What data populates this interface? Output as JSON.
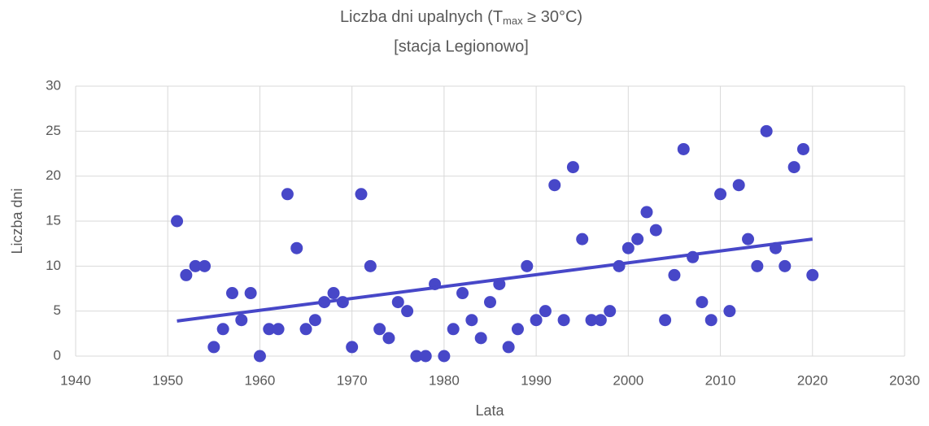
{
  "chart_data": {
    "type": "scatter",
    "title": "Liczba dni upalnych (T",
    "title_subscript": "max",
    "title_rest": " ≥ 30°C)",
    "subtitle": "[stacja Legionowo]",
    "x_label": "Lata",
    "y_label": "Liczba dni",
    "x": [
      1951,
      1952,
      1953,
      1954,
      1955,
      1956,
      1957,
      1958,
      1959,
      1960,
      1961,
      1962,
      1963,
      1964,
      1965,
      1966,
      1967,
      1968,
      1969,
      1970,
      1971,
      1972,
      1973,
      1974,
      1975,
      1976,
      1977,
      1978,
      1979,
      1980,
      1981,
      1982,
      1983,
      1984,
      1985,
      1986,
      1987,
      1988,
      1989,
      1990,
      1991,
      1992,
      1993,
      1994,
      1995,
      1996,
      1997,
      1998,
      1999,
      2000,
      2001,
      2002,
      2003,
      2004,
      2005,
      2006,
      2007,
      2008,
      2009,
      2010,
      2011,
      2012,
      2013,
      2014,
      2015,
      2016,
      2017,
      2018,
      2019,
      2020
    ],
    "values": [
      15,
      9,
      10,
      10,
      1,
      3,
      7,
      4,
      7,
      0,
      3,
      3,
      18,
      12,
      3,
      4,
      6,
      7,
      6,
      1,
      18,
      10,
      3,
      2,
      6,
      5,
      0,
      0,
      8,
      0,
      3,
      7,
      4,
      2,
      6,
      8,
      1,
      3,
      10,
      4,
      5,
      19,
      4,
      21,
      13,
      4,
      4,
      5,
      10,
      12,
      13,
      16,
      14,
      4,
      9,
      23,
      11,
      6,
      4,
      18,
      5,
      19,
      13,
      10,
      25,
      12,
      10,
      21,
      23,
      9
    ],
    "color": "#4747c8",
    "trendline": {
      "x": [
        1951,
        2020
      ],
      "values": [
        3.9,
        13.0
      ],
      "color": "#4747c8"
    },
    "xlim": [
      1940,
      2030
    ],
    "xticks": [
      1940,
      1950,
      1960,
      1970,
      1980,
      1990,
      2000,
      2010,
      2020,
      2030
    ],
    "ylim": [
      0,
      30
    ],
    "yticks": [
      0,
      5,
      10,
      15,
      20,
      25,
      30
    ],
    "grid": true
  }
}
